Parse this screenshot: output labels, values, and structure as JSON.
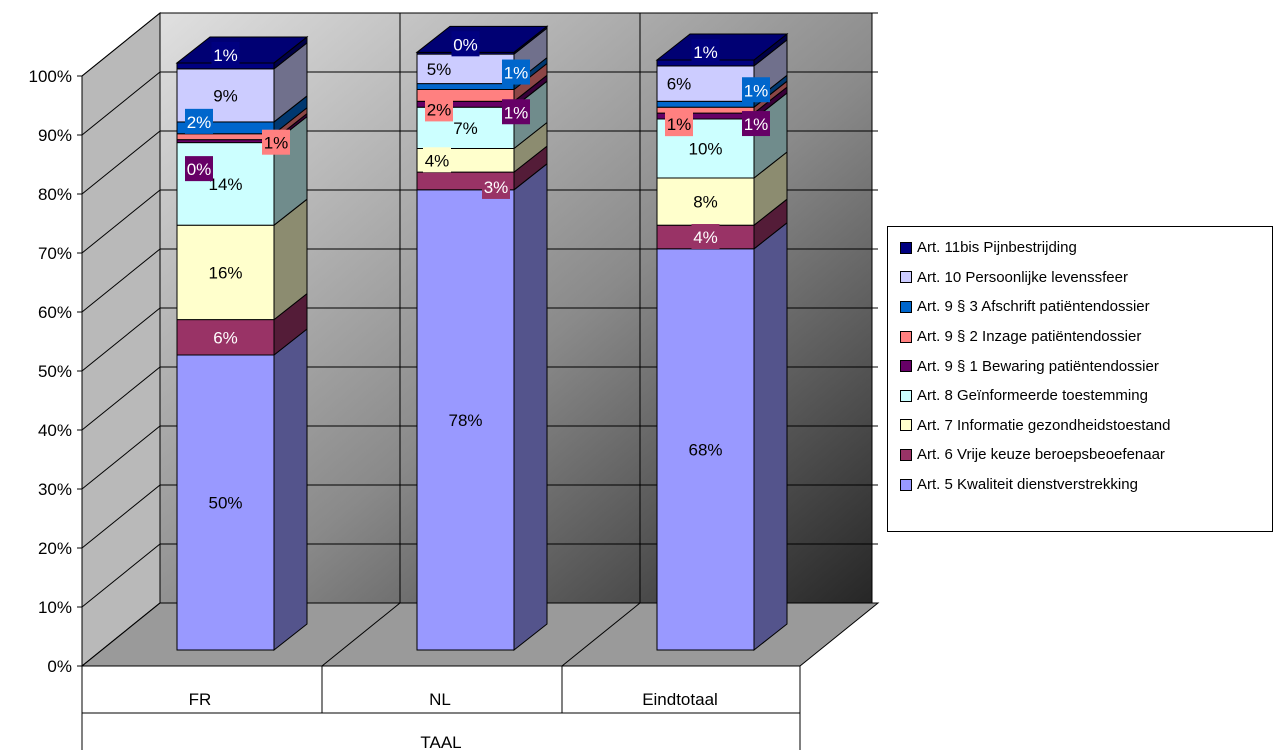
{
  "chart_data": {
    "type": "bar",
    "stacked": true,
    "percent": true,
    "three_d": true,
    "categories": [
      "FR",
      "NL",
      "Eindtotaal"
    ],
    "x_group_label": "TAAL",
    "ylim": [
      0,
      100
    ],
    "y_ticks": [
      "0%",
      "10%",
      "20%",
      "30%",
      "40%",
      "50%",
      "60%",
      "70%",
      "80%",
      "90%",
      "100%"
    ],
    "grid": true,
    "legend_position": "right",
    "series": [
      {
        "name": "Art. 5 Kwaliteit dienstverstrekking",
        "color": "#9999ff",
        "values": [
          50,
          78,
          68
        ],
        "labels": [
          "50%",
          "78%",
          "68%"
        ]
      },
      {
        "name": "Art. 6 Vrije keuze beroepsbeoefenaar",
        "color": "#993366",
        "values": [
          6,
          3,
          4
        ],
        "labels": [
          "6%",
          "3%",
          "4%"
        ]
      },
      {
        "name": "Art. 7 Informatie gezondheidstoestand",
        "color": "#ffffcc",
        "values": [
          16,
          4,
          8
        ],
        "labels": [
          "16%",
          "4%",
          "8%"
        ]
      },
      {
        "name": "Art. 8 Geïnformeerde toestemming",
        "color": "#ccffff",
        "values": [
          14,
          7,
          10
        ],
        "labels": [
          "14%",
          "7%",
          "10%"
        ]
      },
      {
        "name": "Art. 9 § 1 Bewaring patiëntendossier",
        "color": "#660066",
        "values": [
          0.5,
          1,
          1
        ],
        "labels": [
          "0%",
          "1%",
          "1%"
        ]
      },
      {
        "name": "Art. 9 § 2 Inzage patiëntendossier",
        "color": "#ff8080",
        "values": [
          1,
          2,
          1
        ],
        "labels": [
          "1%",
          "2%",
          "1%"
        ]
      },
      {
        "name": "Art. 9 § 3 Afschrift patiëntendossier",
        "color": "#0066cc",
        "values": [
          2,
          1,
          1
        ],
        "labels": [
          "2%",
          "1%",
          "1%"
        ]
      },
      {
        "name": "Art. 10 Persoonlijke levenssfeer",
        "color": "#ccccff",
        "values": [
          9,
          5,
          6
        ],
        "labels": [
          "9%",
          "5%",
          "6%"
        ]
      },
      {
        "name": "Art. 11bis Pijnbestrijding",
        "color": "#000080",
        "values": [
          1,
          0.3,
          1
        ],
        "labels": [
          "1%",
          "0%",
          "1%"
        ]
      }
    ]
  }
}
